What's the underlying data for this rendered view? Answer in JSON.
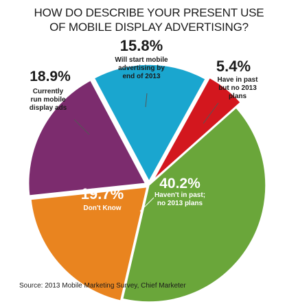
{
  "title": {
    "line1": "HOW DO DESCRIBE YOUR PRESENT USE",
    "line2": "OF MOBILE DISPLAY ADVERTISING?"
  },
  "source": "Source: 2013 Mobile Marketing Survey, Chief Marketer",
  "chart_data": {
    "type": "pie",
    "title": "HOW DO DESCRIBE YOUR PRESENT USE OF MOBILE DISPLAY ADVERTISING?",
    "slices": [
      {
        "value": 15.8,
        "percent_label": "15.8%",
        "label_lines": [
          "Will start mobile",
          "advertising by",
          "end of 2013"
        ],
        "color": "#1aa6cf"
      },
      {
        "value": 5.4,
        "percent_label": "5.4%",
        "label_lines": [
          "Have in past",
          "but no 2013",
          "plans"
        ],
        "color": "#d3171e"
      },
      {
        "value": 40.2,
        "percent_label": "40.2%",
        "label_lines": [
          "Haven't in past;",
          "no 2013 plans"
        ],
        "color": "#6aa63a"
      },
      {
        "value": 19.7,
        "percent_label": "19.7%",
        "label_lines": [
          "Don't Know"
        ],
        "color": "#e9841f"
      },
      {
        "value": 18.9,
        "percent_label": "18.9%",
        "label_lines": [
          "Currently",
          "run mobile",
          "display ads"
        ],
        "color": "#7c2c6e"
      }
    ]
  }
}
